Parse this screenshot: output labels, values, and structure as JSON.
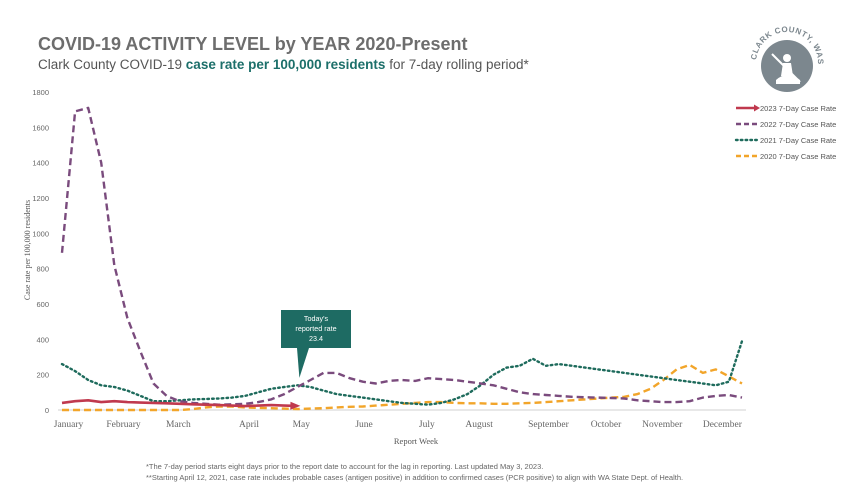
{
  "header": {
    "title": "COVID-19 ACTIVITY LEVEL by YEAR 2020-Present",
    "subtitle_pre": "Clark County COVID-19 ",
    "subtitle_highlight": "case rate per 100,000 residents",
    "subtitle_post": " for 7-day rolling period*"
  },
  "logo": {
    "text": "CLARK COUNTY, WASHINGTON"
  },
  "colors": {
    "2023": "#c0394e",
    "2022": "#7a4b7d",
    "2021": "#1e6b5c",
    "2020": "#f2a52a",
    "callout": "#1e6b63",
    "axis": "#d0d0d0",
    "tick": "#666666"
  },
  "chart_data": {
    "type": "line",
    "title": "COVID-19 ACTIVITY LEVEL by YEAR 2020-Present",
    "xlabel": "Report Week",
    "ylabel": "Case rate per 100,000 residents",
    "ylim": [
      0,
      1800
    ],
    "yticks": [
      0,
      200,
      400,
      600,
      800,
      1000,
      1200,
      1400,
      1600,
      1800
    ],
    "xlim": [
      0,
      52
    ],
    "month_ticks": [
      {
        "label": "January",
        "week": 0.5
      },
      {
        "label": "February",
        "week": 4.7
      },
      {
        "label": "March",
        "week": 8.9
      },
      {
        "label": "April",
        "week": 14.3
      },
      {
        "label": "May",
        "week": 18.3
      },
      {
        "label": "June",
        "week": 23.1
      },
      {
        "label": "July",
        "week": 27.9
      },
      {
        "label": "August",
        "week": 31.9
      },
      {
        "label": "September",
        "week": 37.2
      },
      {
        "label": "October",
        "week": 41.6
      },
      {
        "label": "November",
        "week": 45.9
      },
      {
        "label": "December",
        "week": 50.5
      }
    ],
    "legend_position": "top-right",
    "series": [
      {
        "name": "2023 7-Day Case Rate",
        "key": "2023",
        "style": "solid",
        "x": [
          0,
          1,
          2,
          3,
          4,
          5,
          6,
          7,
          8,
          9,
          10,
          11,
          12,
          13,
          14,
          15,
          16,
          17,
          18
        ],
        "values": [
          40,
          50,
          55,
          45,
          50,
          45,
          42,
          40,
          38,
          35,
          32,
          30,
          28,
          25,
          22,
          25,
          28,
          25,
          23.4
        ]
      },
      {
        "name": "2022 7-Day Case Rate",
        "key": "2022",
        "style": "dashed",
        "x": [
          0,
          1,
          2,
          3,
          4,
          5,
          6,
          7,
          8,
          9,
          10,
          11,
          12,
          13,
          14,
          15,
          16,
          17,
          18,
          19,
          20,
          21,
          22,
          23,
          24,
          25,
          26,
          27,
          28,
          29,
          30,
          31,
          32,
          33,
          34,
          35,
          36,
          37,
          38,
          39,
          40,
          41,
          42,
          43,
          44,
          45,
          46,
          47,
          48,
          49,
          50,
          51,
          52
        ],
        "values": [
          890,
          1690,
          1710,
          1400,
          820,
          520,
          330,
          150,
          80,
          50,
          40,
          35,
          30,
          32,
          35,
          45,
          60,
          90,
          130,
          170,
          210,
          210,
          180,
          160,
          150,
          165,
          170,
          165,
          180,
          175,
          170,
          160,
          150,
          140,
          120,
          100,
          90,
          85,
          80,
          75,
          72,
          70,
          68,
          65,
          55,
          50,
          45,
          45,
          50,
          70,
          80,
          85,
          70
        ]
      },
      {
        "name": "2021 7-Day Case Rate",
        "key": "2021",
        "style": "dotted",
        "x": [
          0,
          1,
          2,
          3,
          4,
          5,
          6,
          7,
          8,
          9,
          10,
          11,
          12,
          13,
          14,
          15,
          16,
          17,
          18,
          19,
          20,
          21,
          22,
          23,
          24,
          25,
          26,
          27,
          28,
          29,
          30,
          31,
          32,
          33,
          34,
          35,
          36,
          37,
          38,
          39,
          40,
          41,
          42,
          43,
          44,
          45,
          46,
          47,
          48,
          49,
          50,
          51,
          52
        ],
        "values": [
          260,
          220,
          170,
          140,
          130,
          110,
          80,
          50,
          50,
          55,
          60,
          62,
          65,
          70,
          80,
          100,
          120,
          130,
          140,
          130,
          110,
          90,
          80,
          70,
          60,
          50,
          40,
          35,
          30,
          40,
          60,
          90,
          140,
          200,
          240,
          250,
          290,
          250,
          260,
          250,
          240,
          230,
          220,
          210,
          200,
          190,
          180,
          170,
          160,
          150,
          140,
          160,
          390
        ]
      },
      {
        "name": "2020 7-Day Case Rate",
        "key": "2020",
        "style": "dashed",
        "x": [
          0,
          1,
          2,
          3,
          4,
          5,
          6,
          7,
          8,
          9,
          10,
          11,
          12,
          13,
          14,
          15,
          16,
          17,
          18,
          19,
          20,
          21,
          22,
          23,
          24,
          25,
          26,
          27,
          28,
          29,
          30,
          31,
          32,
          33,
          34,
          35,
          36,
          37,
          38,
          39,
          40,
          41,
          42,
          43,
          44,
          45,
          46,
          47,
          48,
          49,
          50,
          51,
          52
        ],
        "values": [
          0,
          0,
          0,
          0,
          0,
          0,
          0,
          0,
          0,
          0,
          5,
          15,
          20,
          20,
          15,
          12,
          10,
          8,
          5,
          8,
          10,
          15,
          18,
          20,
          25,
          30,
          35,
          40,
          45,
          45,
          40,
          38,
          38,
          35,
          35,
          38,
          40,
          45,
          50,
          55,
          60,
          65,
          70,
          75,
          90,
          120,
          170,
          230,
          255,
          210,
          230,
          190,
          150
        ]
      }
    ],
    "annotation": {
      "series": "2023",
      "week": 18,
      "value": 23.4,
      "lines": [
        "Today's",
        "reported rate",
        "23.4"
      ]
    },
    "footnotes": [
      "*The 7-day period starts eight days prior to the report date to account for the lag in reporting.  Last updated  May 3, 2023.",
      "**Starting  April 12, 2021, case rate includes probable cases (antigen positive) in addition  to confirmed cases (PCR positive) to align with WA State Dept. of Health."
    ]
  }
}
